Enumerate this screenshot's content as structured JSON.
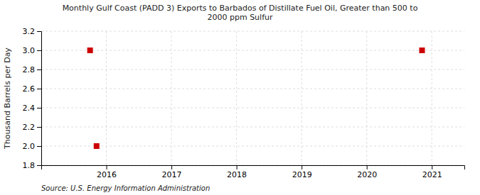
{
  "chart_data": {
    "type": "scatter",
    "title": "Monthly Gulf Coast (PADD 3) Exports to Barbados of Distillate Fuel Oil, Greater than 500 to\n2000 ppm Sulfur",
    "y_label": "Thousand Barrels per Day",
    "annotation": "Source: U.S. Energy Information Administration",
    "x": [
      2015.75,
      2015.85,
      2020.85
    ],
    "values": [
      3.0,
      2.0,
      3.0
    ],
    "color": "#cc0000",
    "marker": "square",
    "xlim": [
      2015.0,
      2021.5
    ],
    "ylim": [
      1.8,
      3.2
    ],
    "xticks": [
      2016,
      2017,
      2018,
      2019,
      2020,
      2021
    ],
    "yticks": [
      1.8,
      {
        "value": 2.0,
        "label": "2.0"
      },
      2.2,
      2.4,
      2.6,
      2.8,
      {
        "value": 3.0,
        "label": "3.0"
      },
      3.2
    ],
    "grid": true
  }
}
